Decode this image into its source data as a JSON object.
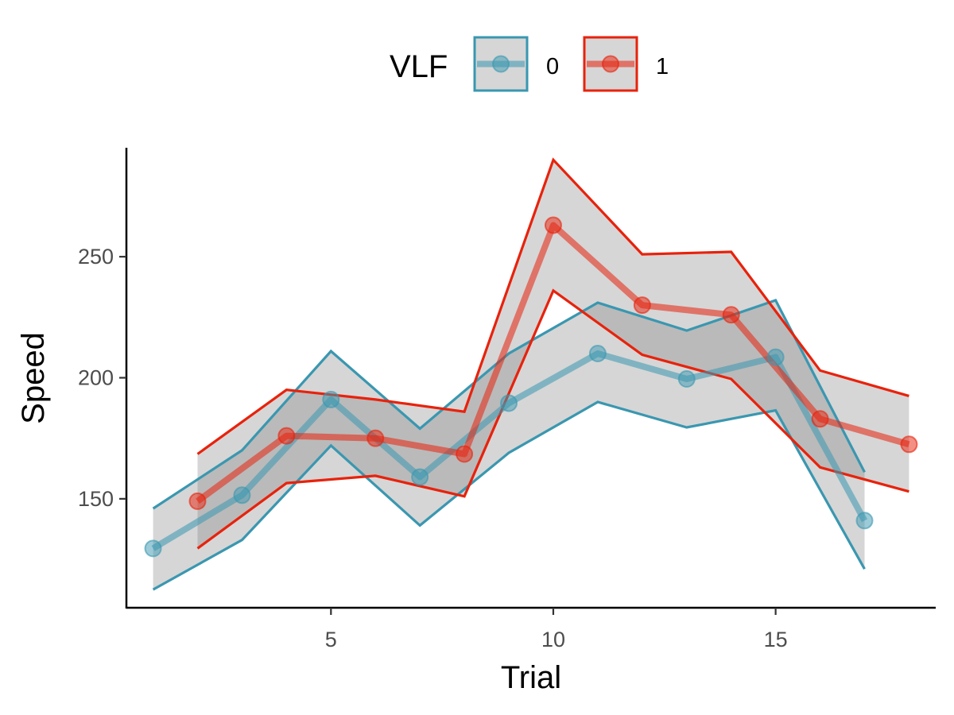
{
  "chart_data": {
    "type": "line",
    "title": "",
    "xlabel": "Trial",
    "ylabel": "Speed",
    "xlim": [
      0.4,
      18.6
    ],
    "ylim": [
      105,
      295
    ],
    "xticks": [
      5,
      10,
      15
    ],
    "yticks": [
      150,
      200,
      250
    ],
    "grid": false,
    "legend": {
      "title": "VLF",
      "placement": "top"
    },
    "series": [
      {
        "name": "0",
        "color": "#3a97b0",
        "x": [
          1,
          3,
          5,
          7,
          9,
          11,
          13,
          15,
          17
        ],
        "y": [
          129.5,
          151.5,
          191,
          159,
          189.5,
          210,
          199.5,
          208.5,
          141
        ],
        "upper": [
          146,
          170,
          211,
          179,
          210,
          231,
          219.5,
          232,
          161
        ],
        "lower": [
          112.5,
          133,
          172,
          139,
          169,
          190,
          179.5,
          186.5,
          121
        ]
      },
      {
        "name": "1",
        "color": "#e8220c",
        "x": [
          2,
          4,
          6,
          8,
          10,
          12,
          14,
          16,
          18
        ],
        "y": [
          149,
          176,
          175,
          168.5,
          263,
          230,
          226,
          183,
          172.5
        ],
        "upper": [
          168.5,
          195,
          191,
          186,
          290,
          251,
          252,
          203,
          192.5
        ],
        "lower": [
          129.5,
          156.5,
          159.5,
          151,
          236,
          209.5,
          199.5,
          163,
          153
        ]
      }
    ]
  }
}
